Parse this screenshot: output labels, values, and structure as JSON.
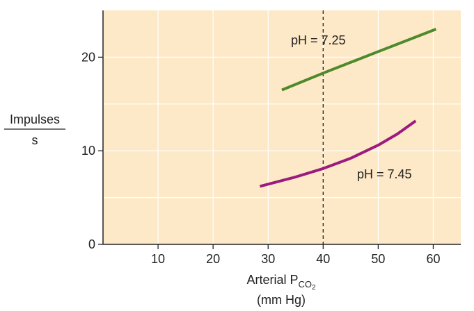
{
  "chart_data": {
    "type": "line",
    "title": "",
    "xlabel": {
      "main": "Arterial P",
      "subscript": "CO",
      "subscript_sub": "2",
      "units": "(mm Hg)"
    },
    "ylabel": {
      "numerator": "Impulses",
      "denominator": "s"
    },
    "xlim": [
      0,
      65
    ],
    "ylim": [
      0,
      25
    ],
    "xticks": [
      10,
      20,
      30,
      40,
      50,
      60
    ],
    "xtick_labels": [
      "10",
      "20",
      "30",
      "40",
      "50",
      "60"
    ],
    "yticks": [
      0,
      10,
      20
    ],
    "ytick_labels": [
      "0",
      "10",
      "20"
    ],
    "grid": true,
    "grid_x": [
      10,
      20,
      30,
      40,
      50,
      60
    ],
    "grid_y": [
      5,
      10,
      15,
      20
    ],
    "reference_line": {
      "x": 40,
      "style": "dashed"
    },
    "colors": {
      "background": "#fde9c7",
      "grid": "#ffffff",
      "axis": "#222222",
      "series_high_ph": "#9b1b7e",
      "series_low_ph": "#4e8a2b"
    },
    "series": [
      {
        "name": "pH = 7.25",
        "color": "#4e8a2b",
        "points": [
          [
            32.5,
            16.5
          ],
          [
            40,
            18.3
          ],
          [
            50,
            20.6
          ],
          [
            60.5,
            23
          ]
        ]
      },
      {
        "name": "pH = 7.45",
        "color": "#9b1b7e",
        "points": [
          [
            28.5,
            6.2
          ],
          [
            35,
            7.2
          ],
          [
            40,
            8.1
          ],
          [
            45,
            9.2
          ],
          [
            50,
            10.6
          ],
          [
            53.5,
            11.8
          ],
          [
            56.8,
            13.2
          ]
        ]
      }
    ]
  }
}
